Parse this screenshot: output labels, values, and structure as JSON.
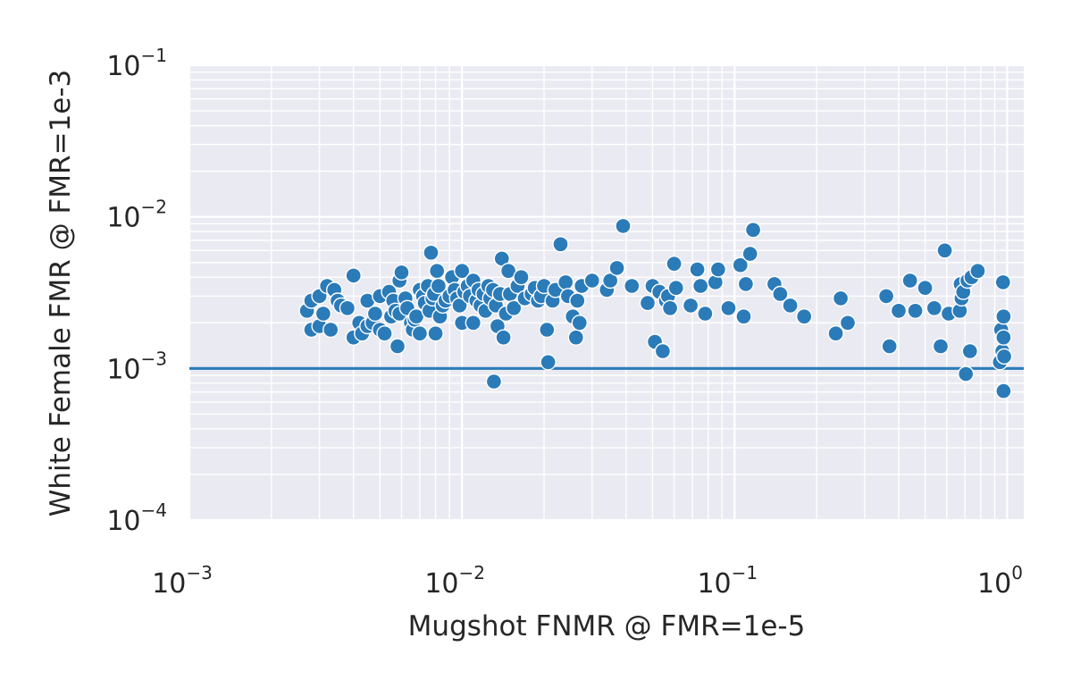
{
  "chart_data": {
    "type": "scatter",
    "xlabel": "Mugshot FNMR @ FMR=1e-5",
    "ylabel": "White Female FMR @ FMR=1e-3",
    "xscale": "log",
    "yscale": "log",
    "xlim": [
      0.001,
      1.15
    ],
    "ylim": [
      0.0001,
      0.1
    ],
    "x_ticks": [
      {
        "base": "10",
        "exp": "−3"
      },
      {
        "base": "10",
        "exp": "−2"
      },
      {
        "base": "10",
        "exp": "−1"
      },
      {
        "base": "10",
        "exp": "0"
      }
    ],
    "y_ticks": [
      {
        "base": "10",
        "exp": "−4"
      },
      {
        "base": "10",
        "exp": "−3"
      },
      {
        "base": "10",
        "exp": "−2"
      },
      {
        "base": "10",
        "exp": "−1"
      }
    ],
    "grid": true,
    "background_color": "#eaeaf2",
    "marker_color": "#2b7bb9",
    "reference_line": {
      "y": 0.001,
      "color": "#2b7bb9"
    },
    "points": [
      [
        0.0027,
        0.0024
      ],
      [
        0.0028,
        0.0028
      ],
      [
        0.0028,
        0.0018
      ],
      [
        0.003,
        0.003
      ],
      [
        0.003,
        0.0019
      ],
      [
        0.0031,
        0.0023
      ],
      [
        0.0032,
        0.0035
      ],
      [
        0.0033,
        0.0018
      ],
      [
        0.0034,
        0.0033
      ],
      [
        0.0035,
        0.0028
      ],
      [
        0.0036,
        0.0026
      ],
      [
        0.0038,
        0.0025
      ],
      [
        0.004,
        0.0041
      ],
      [
        0.004,
        0.0016
      ],
      [
        0.0042,
        0.002
      ],
      [
        0.0043,
        0.0017
      ],
      [
        0.0045,
        0.0028
      ],
      [
        0.0045,
        0.0019
      ],
      [
        0.0047,
        0.002
      ],
      [
        0.0048,
        0.0023
      ],
      [
        0.005,
        0.003
      ],
      [
        0.005,
        0.0018
      ],
      [
        0.0052,
        0.0017
      ],
      [
        0.0054,
        0.0032
      ],
      [
        0.0055,
        0.0022
      ],
      [
        0.0056,
        0.0028
      ],
      [
        0.0057,
        0.0024
      ],
      [
        0.0058,
        0.0014
      ],
      [
        0.0059,
        0.0023
      ],
      [
        0.0059,
        0.0038
      ],
      [
        0.006,
        0.0043
      ],
      [
        0.0062,
        0.0029
      ],
      [
        0.0063,
        0.0025
      ],
      [
        0.0065,
        0.002
      ],
      [
        0.0066,
        0.0018
      ],
      [
        0.0067,
        0.0021
      ],
      [
        0.0068,
        0.0022
      ],
      [
        0.007,
        0.0033
      ],
      [
        0.007,
        0.0017
      ],
      [
        0.0072,
        0.003
      ],
      [
        0.0073,
        0.0027
      ],
      [
        0.0075,
        0.0035
      ],
      [
        0.0076,
        0.0024
      ],
      [
        0.0077,
        0.0058
      ],
      [
        0.0078,
        0.0029
      ],
      [
        0.0079,
        0.0031
      ],
      [
        0.008,
        0.0017
      ],
      [
        0.0081,
        0.0044
      ],
      [
        0.0082,
        0.0035
      ],
      [
        0.0083,
        0.0022
      ],
      [
        0.0085,
        0.0026
      ],
      [
        0.0087,
        0.0028
      ],
      [
        0.009,
        0.003
      ],
      [
        0.0092,
        0.004
      ],
      [
        0.0094,
        0.0033
      ],
      [
        0.0096,
        0.0029
      ],
      [
        0.0098,
        0.0026
      ],
      [
        0.01,
        0.0044
      ],
      [
        0.01,
        0.002
      ],
      [
        0.0102,
        0.0032
      ],
      [
        0.0105,
        0.0035
      ],
      [
        0.0107,
        0.003
      ],
      [
        0.011,
        0.0038
      ],
      [
        0.011,
        0.002
      ],
      [
        0.0113,
        0.0028
      ],
      [
        0.0115,
        0.0033
      ],
      [
        0.0117,
        0.0026
      ],
      [
        0.012,
        0.0031
      ],
      [
        0.0122,
        0.0024
      ],
      [
        0.0125,
        0.0035
      ],
      [
        0.0127,
        0.0029
      ],
      [
        0.013,
        0.0033
      ],
      [
        0.0131,
        0.00082
      ],
      [
        0.0133,
        0.0026
      ],
      [
        0.0135,
        0.0019
      ],
      [
        0.0138,
        0.0031
      ],
      [
        0.014,
        0.0053
      ],
      [
        0.0142,
        0.0016
      ],
      [
        0.0145,
        0.0023
      ],
      [
        0.0148,
        0.0044
      ],
      [
        0.015,
        0.0031
      ],
      [
        0.0155,
        0.0025
      ],
      [
        0.016,
        0.0035
      ],
      [
        0.0165,
        0.004
      ],
      [
        0.017,
        0.0029
      ],
      [
        0.018,
        0.0031
      ],
      [
        0.0185,
        0.0034
      ],
      [
        0.019,
        0.0028
      ],
      [
        0.0195,
        0.003
      ],
      [
        0.02,
        0.0035
      ],
      [
        0.0205,
        0.0018
      ],
      [
        0.0207,
        0.0011
      ],
      [
        0.0215,
        0.0028
      ],
      [
        0.022,
        0.0033
      ],
      [
        0.023,
        0.0066
      ],
      [
        0.024,
        0.0037
      ],
      [
        0.0245,
        0.003
      ],
      [
        0.0255,
        0.0022
      ],
      [
        0.0262,
        0.0016
      ],
      [
        0.0265,
        0.0028
      ],
      [
        0.027,
        0.002
      ],
      [
        0.0275,
        0.0035
      ],
      [
        0.03,
        0.0038
      ],
      [
        0.034,
        0.0033
      ],
      [
        0.035,
        0.0038
      ],
      [
        0.037,
        0.0046
      ],
      [
        0.039,
        0.0087
      ],
      [
        0.042,
        0.0035
      ],
      [
        0.048,
        0.0027
      ],
      [
        0.05,
        0.0035
      ],
      [
        0.051,
        0.0015
      ],
      [
        0.053,
        0.0032
      ],
      [
        0.0545,
        0.0013
      ],
      [
        0.056,
        0.0028
      ],
      [
        0.057,
        0.003
      ],
      [
        0.058,
        0.0025
      ],
      [
        0.06,
        0.0049
      ],
      [
        0.061,
        0.0034
      ],
      [
        0.069,
        0.0026
      ],
      [
        0.073,
        0.0045
      ],
      [
        0.075,
        0.0035
      ],
      [
        0.078,
        0.0023
      ],
      [
        0.085,
        0.0037
      ],
      [
        0.087,
        0.0045
      ],
      [
        0.095,
        0.0025
      ],
      [
        0.105,
        0.0048
      ],
      [
        0.108,
        0.0022
      ],
      [
        0.11,
        0.0036
      ],
      [
        0.114,
        0.0057
      ],
      [
        0.117,
        0.0082
      ],
      [
        0.14,
        0.0036
      ],
      [
        0.147,
        0.0031
      ],
      [
        0.16,
        0.0026
      ],
      [
        0.18,
        0.0022
      ],
      [
        0.235,
        0.0017
      ],
      [
        0.245,
        0.0029
      ],
      [
        0.26,
        0.002
      ],
      [
        0.36,
        0.003
      ],
      [
        0.37,
        0.0014
      ],
      [
        0.4,
        0.0024
      ],
      [
        0.44,
        0.0038
      ],
      [
        0.46,
        0.0024
      ],
      [
        0.5,
        0.0034
      ],
      [
        0.54,
        0.0025
      ],
      [
        0.57,
        0.0014
      ],
      [
        0.59,
        0.006
      ],
      [
        0.61,
        0.0023
      ],
      [
        0.67,
        0.0024
      ],
      [
        0.675,
        0.0036
      ],
      [
        0.68,
        0.0029
      ],
      [
        0.69,
        0.0032
      ],
      [
        0.705,
        0.00092
      ],
      [
        0.715,
        0.0038
      ],
      [
        0.73,
        0.0013
      ],
      [
        0.74,
        0.004
      ],
      [
        0.78,
        0.0044
      ],
      [
        0.94,
        0.0011
      ],
      [
        0.95,
        0.0018
      ],
      [
        0.96,
        0.0013
      ],
      [
        0.965,
        0.0037
      ],
      [
        0.97,
        0.0022
      ],
      [
        0.97,
        0.0016
      ],
      [
        0.975,
        0.0012
      ],
      [
        0.97,
        0.00071
      ]
    ]
  }
}
